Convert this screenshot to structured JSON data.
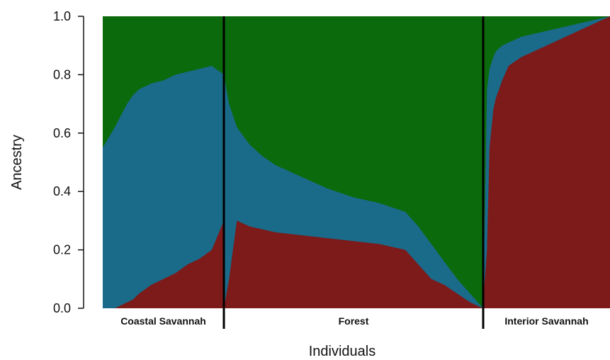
{
  "chart_data": {
    "type": "area",
    "title": "",
    "xlabel": "Individuals",
    "ylabel": "Ancestry",
    "ylim": [
      0,
      1
    ],
    "yticks": [
      "0.0",
      "0.2",
      "0.4",
      "0.6",
      "0.8",
      "1.0"
    ],
    "x_unit": "individuals (ordered)",
    "stacking_order": [
      "red",
      "blue",
      "green"
    ],
    "colors": {
      "red": "#7d1a1a",
      "blue": "#1a6a8a",
      "green": "#0b6a0b"
    },
    "groups": [
      {
        "name": "Coastal Savannah",
        "x": [
          0,
          10,
          15,
          20,
          25,
          30,
          40,
          50,
          60,
          70,
          80,
          90,
          100
        ],
        "red": [
          0.0,
          0.0,
          0.01,
          0.02,
          0.03,
          0.05,
          0.08,
          0.1,
          0.12,
          0.15,
          0.17,
          0.2,
          0.3
        ],
        "red_blue": [
          0.55,
          0.62,
          0.66,
          0.7,
          0.73,
          0.75,
          0.77,
          0.78,
          0.8,
          0.81,
          0.82,
          0.83,
          0.8
        ]
      },
      {
        "name": "Forest",
        "x": [
          0,
          2,
          5,
          10,
          15,
          20,
          30,
          40,
          50,
          60,
          70,
          75,
          80,
          85,
          90,
          95,
          100
        ],
        "red": [
          0.0,
          0.1,
          0.3,
          0.28,
          0.27,
          0.26,
          0.25,
          0.24,
          0.23,
          0.22,
          0.2,
          0.15,
          0.1,
          0.08,
          0.05,
          0.02,
          0.0
        ],
        "red_blue": [
          0.8,
          0.7,
          0.62,
          0.56,
          0.52,
          0.49,
          0.45,
          0.41,
          0.38,
          0.36,
          0.33,
          0.28,
          0.22,
          0.16,
          0.1,
          0.05,
          0.0
        ]
      },
      {
        "name": "Interior Savannah",
        "x": [
          0,
          3,
          5,
          8,
          10,
          15,
          20,
          30,
          40,
          50,
          60,
          70,
          80,
          90,
          100
        ],
        "red": [
          0.02,
          0.2,
          0.55,
          0.68,
          0.72,
          0.78,
          0.83,
          0.86,
          0.88,
          0.9,
          0.92,
          0.94,
          0.96,
          0.98,
          1.0
        ],
        "red_blue": [
          0.02,
          0.75,
          0.82,
          0.86,
          0.88,
          0.9,
          0.91,
          0.93,
          0.94,
          0.95,
          0.96,
          0.97,
          0.98,
          0.99,
          1.0
        ]
      }
    ]
  }
}
